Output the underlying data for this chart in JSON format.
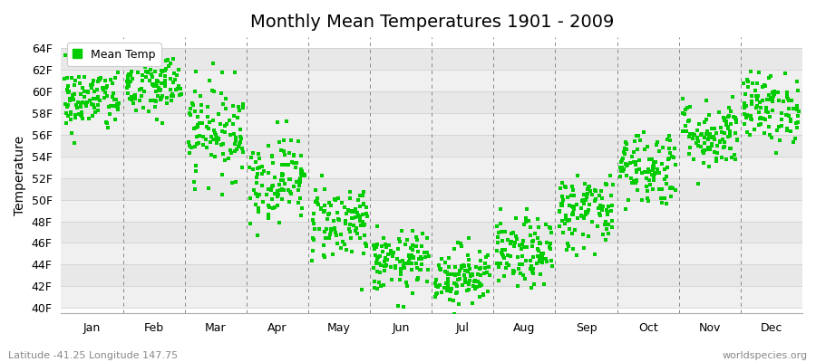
{
  "title": "Monthly Mean Temperatures 1901 - 2009",
  "ylabel": "Temperature",
  "xlabel_labels": [
    "Jan",
    "Feb",
    "Mar",
    "Apr",
    "May",
    "Jun",
    "Jul",
    "Aug",
    "Sep",
    "Oct",
    "Nov",
    "Dec"
  ],
  "ytick_labels": [
    "40F",
    "42F",
    "44F",
    "46F",
    "48F",
    "50F",
    "52F",
    "54F",
    "56F",
    "58F",
    "60F",
    "62F",
    "64F"
  ],
  "ytick_values": [
    40,
    42,
    44,
    46,
    48,
    50,
    52,
    54,
    56,
    58,
    60,
    62,
    64
  ],
  "ylim": [
    39.5,
    65.0
  ],
  "dot_color": "#00cc00",
  "dot_size": 5,
  "legend_label": "Mean Temp",
  "footer_left": "Latitude -41.25 Longitude 147.75",
  "footer_right": "worldspecies.org",
  "bg_color": "#ffffff",
  "fig_bg_color": "#ffffff",
  "band_colors": [
    "#f0f0f0",
    "#e8e8e8"
  ],
  "monthly_means": [
    59.2,
    60.5,
    56.5,
    52.0,
    48.0,
    44.2,
    43.0,
    45.0,
    49.0,
    53.0,
    56.0,
    58.5
  ],
  "monthly_stds": [
    1.5,
    1.6,
    2.2,
    2.0,
    1.8,
    1.4,
    1.4,
    1.6,
    1.8,
    1.8,
    1.6,
    1.6
  ],
  "n_years": 109,
  "random_seed": 42,
  "title_fontsize": 14,
  "axis_label_fontsize": 10,
  "tick_fontsize": 9,
  "footer_fontsize": 8
}
